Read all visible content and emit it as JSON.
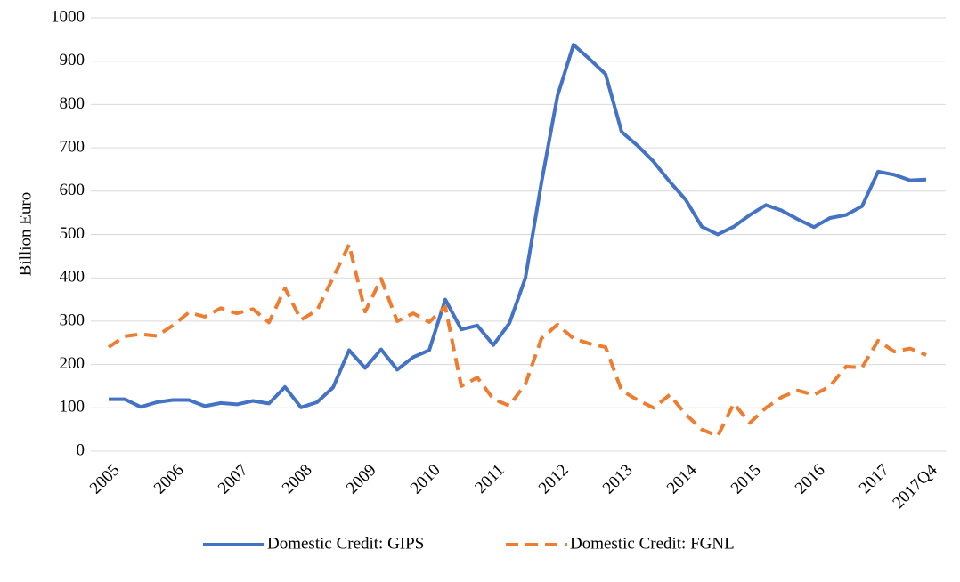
{
  "chart_data": {
    "type": "line",
    "y_label": "Billion Euro",
    "categories": [
      "2005",
      null,
      null,
      null,
      "2006",
      null,
      null,
      null,
      "2007",
      null,
      null,
      null,
      "2008",
      null,
      null,
      null,
      "2009",
      null,
      null,
      null,
      "2010",
      null,
      null,
      null,
      "2011",
      null,
      null,
      null,
      "2012",
      null,
      null,
      null,
      "2013",
      null,
      null,
      null,
      "2014",
      null,
      null,
      null,
      "2015",
      null,
      null,
      null,
      "2016",
      null,
      null,
      null,
      "2017",
      null,
      null,
      "2017Q4"
    ],
    "series": [
      {
        "name": "Domestic Credit: GIPS",
        "color": "#4472c4",
        "dash": false,
        "values": [
          120,
          120,
          102,
          113,
          118,
          118,
          104,
          111,
          108,
          116,
          110,
          148,
          101,
          113,
          147,
          233,
          192,
          235,
          188,
          217,
          233,
          350,
          281,
          290,
          245,
          295,
          400,
          620,
          820,
          938,
          905,
          870,
          737,
          705,
          668,
          622,
          580,
          518,
          500,
          518,
          545,
          568,
          555,
          535,
          517,
          538,
          545,
          565,
          645,
          638,
          625,
          627
        ]
      },
      {
        "name": "Domestic Credit: FGNL",
        "color": "#ed7d31",
        "dash": true,
        "values": [
          240,
          265,
          270,
          266,
          290,
          320,
          310,
          330,
          318,
          328,
          297,
          376,
          303,
          325,
          400,
          477,
          322,
          398,
          300,
          318,
          298,
          333,
          150,
          170,
          120,
          105,
          155,
          260,
          292,
          260,
          248,
          240,
          140,
          118,
          100,
          130,
          85,
          50,
          35,
          110,
          65,
          100,
          125,
          140,
          130,
          150,
          195,
          193,
          255,
          230,
          237,
          222
        ]
      }
    ],
    "ylim": [
      0,
      1000
    ],
    "yticks": [
      0,
      100,
      200,
      300,
      400,
      500,
      600,
      700,
      800,
      900,
      1000
    ],
    "grid": true,
    "legend": "bottom"
  }
}
